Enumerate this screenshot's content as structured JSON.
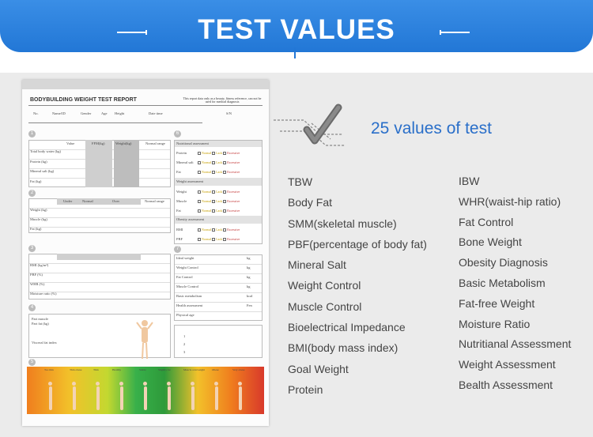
{
  "banner": {
    "title": "TEST VALUES"
  },
  "report": {
    "title": "BODYBUILDING WEIGHT TEST REPORT",
    "note": "This report data only as a beauty, fitness reference, can not be used for medical diagnosis",
    "info_fields": [
      "No.",
      "Name/ID",
      "Gender",
      "Age",
      "Height",
      "Date time",
      "S/N"
    ],
    "sections": [
      "1",
      "2",
      "3",
      "4",
      "5",
      "6",
      "7"
    ],
    "sec1_headers": [
      "Value",
      "FFM(kg)",
      "Weight(kg)",
      "Normal range"
    ],
    "sec1_rows": [
      "Total body water (kg)",
      "Protein (kg)",
      "Mineral salt (kg)",
      "Fat (kg)"
    ],
    "sec2_headers": [
      "Under",
      "Normal",
      "Over",
      "Normal range"
    ],
    "sec2_rows": [
      "Weight (kg)",
      "Muscle (kg)",
      "Fat (kg)"
    ],
    "sec3_rows": [
      "BMI (kg/m²)",
      "PBF (%)",
      "WHR (%)",
      "Moisture ratio (%)"
    ],
    "sec4_labels": [
      "Part muscle",
      "Part fat (kg)",
      "Visceral fat index"
    ],
    "sec5_scale": [
      "Too thin",
      "Thin obese",
      "Thin",
      "Healthy",
      "Stable",
      "Slightly fat",
      "Muscle overweight",
      "Obese",
      "Very obese"
    ],
    "sec6_heading": "Nutritional assessment",
    "sec6_rows": [
      "Protein",
      "Mineral salt",
      "Fat"
    ],
    "sec6_weight_heading": "Weight assessment",
    "sec6_weight_rows": [
      "Weight",
      "Muscle",
      "Fat"
    ],
    "sec6_obesity_heading": "Obesity assessment",
    "sec6_obesity_rows": [
      "BMI",
      "PBF"
    ],
    "options": [
      "Normal",
      "Lack",
      "Excessive"
    ],
    "sec7_rows": [
      "Ideal weight",
      "Weight Control",
      "Fat Control",
      "Muscle Control",
      "Basic metabolism",
      "Health assessment",
      "Physical age"
    ],
    "sec7_units": [
      "kg",
      "kg",
      "kg",
      "kg",
      "kcal",
      "Fen",
      ""
    ],
    "sec7_list": [
      "1",
      "2",
      "3"
    ]
  },
  "headline": "25 values of test",
  "values_left": [
    "TBW",
    "Body Fat",
    "SMM(skeletal muscle)",
    "PBF(percentage of body fat)",
    "Mineral Salt",
    "Weight Control",
    "Muscle Control",
    "Bioelectrical Impedance",
    "BMI(body mass index)",
    "Goal Weight",
    "Protein"
  ],
  "values_right": [
    "IBW",
    "WHR(waist-hip ratio)",
    "Fat Control",
    "Bone Weight",
    "Obesity Diagnosis",
    "Basic Metabolism",
    "Fat-free Weight",
    "Moisture Ratio",
    "Nutritianal Assessment",
    "Weight Assessment",
    "Bealth Assessment"
  ],
  "colors": {
    "accent": "#2277d6",
    "headline": "#2a6fc9",
    "text": "#444444"
  }
}
